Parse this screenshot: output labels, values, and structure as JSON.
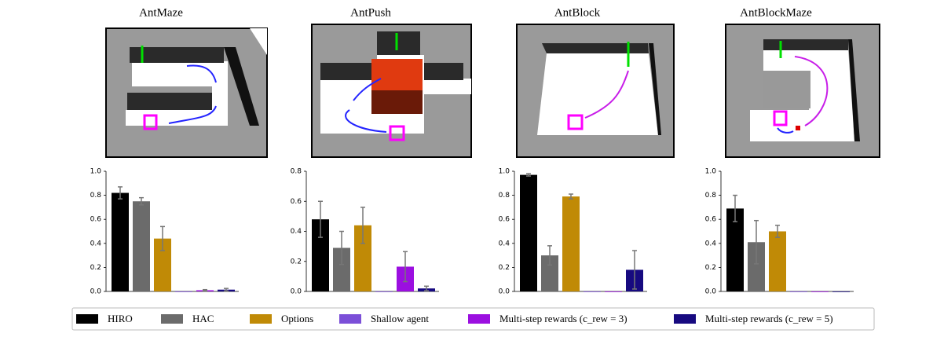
{
  "chart_data": [
    {
      "type": "bar",
      "title": "AntMaze",
      "values": [
        0.82,
        0.75,
        0.44,
        0,
        0.01,
        0.015
      ],
      "errors": [
        0.05,
        0.03,
        0.1,
        null,
        0.005,
        0.01
      ],
      "ylim": [
        0,
        1.0
      ],
      "yticks": [
        {
          "value": 0,
          "label": "0.0"
        },
        0.2,
        0.4,
        0.6,
        0.8,
        {
          "value": 1.0,
          "label": "1.0"
        }
      ]
    },
    {
      "type": "bar",
      "title": "AntPush",
      "values": [
        0.48,
        0.29,
        0.44,
        0,
        0.165,
        0.02
      ],
      "errors": [
        0.12,
        0.11,
        0.12,
        null,
        0.1,
        0.015
      ],
      "ylim": [
        0,
        0.8
      ],
      "yticks": [
        {
          "value": 0,
          "label": "0.0"
        },
        0.2,
        0.4,
        0.6,
        0.8
      ]
    },
    {
      "type": "bar",
      "title": "AntBlock",
      "values": [
        0.97,
        0.3,
        0.79,
        0,
        0,
        0.18
      ],
      "errors": [
        0.01,
        0.08,
        0.02,
        null,
        null,
        0.16
      ],
      "ylim": [
        0,
        1.0
      ],
      "yticks": [
        {
          "value": 0,
          "label": "0.0"
        },
        0.2,
        0.4,
        0.6,
        0.8,
        {
          "value": 1.0,
          "label": "1.0"
        }
      ]
    },
    {
      "type": "bar",
      "title": "AntBlockMaze",
      "values": [
        0.69,
        0.41,
        0.5,
        0,
        0,
        0
      ],
      "errors": [
        0.11,
        0.18,
        0.05,
        null,
        null,
        null
      ],
      "ylim": [
        0,
        1.0
      ],
      "yticks": [
        {
          "value": 0,
          "label": "0.0"
        },
        0.2,
        0.4,
        0.6,
        0.8,
        {
          "value": 1.0,
          "label": "1.0"
        }
      ]
    }
  ],
  "legend": {
    "items": [
      {
        "name": "HIRO",
        "color": "#000000"
      },
      {
        "name": "HAC",
        "color": "#6b6b6b"
      },
      {
        "name": "Options",
        "color": "#c08a06"
      },
      {
        "name": "Shallow agent",
        "color": "#7b4fd8"
      },
      {
        "name": "Multi-step rewards (c_rew = 3)",
        "color": "#9b0fe0"
      },
      {
        "name": "Multi-step rewards (c_rew = 5)",
        "color": "#170a80"
      }
    ]
  }
}
